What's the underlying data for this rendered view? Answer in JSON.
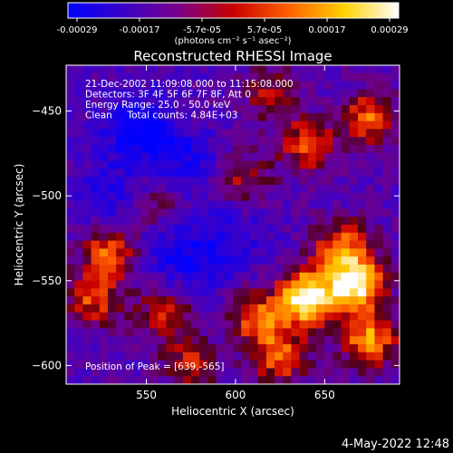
{
  "colorbar": {
    "ticks": [
      "-0.00029",
      "-0.00017",
      "-5.7e-05",
      "5.7e-05",
      "0.00017",
      "0.00029"
    ],
    "units": "(photons cm⁻² s⁻¹ asec⁻²)",
    "colors": [
      "#0000ff",
      "#3a00c8",
      "#7a008a",
      "#c80000",
      "#ff6000",
      "#ffd000",
      "#ffffff"
    ]
  },
  "footer": {
    "date": "4-May-2022 12:48"
  },
  "chart_data": {
    "type": "heatmap",
    "title": "Reconstructed RHESSI Image",
    "xlabel": "Heliocentric X (arcsec)",
    "ylabel": "Heliocentric Y (arcsec)",
    "xlim": [
      505,
      692
    ],
    "ylim": [
      -611,
      -423
    ],
    "x_ticks": [
      550,
      600,
      650
    ],
    "y_ticks": [
      -450,
      -500,
      -550,
      -600
    ],
    "value_range": [
      -0.00029,
      0.00029
    ],
    "annotations": [
      "21-Dec-2002 11:09:08.000 to 11:15:08.000",
      "Detectors: 3F 4F 5F 6F 7F 8F, Att 0",
      "Energy Range: 25.0 - 50.0 keV",
      "Clean     Total counts: 4.84E+03"
    ],
    "peak_label": "Position of Peak = [639,-565]",
    "peak": [
      639,
      -565
    ],
    "bright_regions": [
      {
        "x": 640,
        "y": -560,
        "strength": 1.0
      },
      {
        "x": 668,
        "y": -553,
        "strength": 0.9
      },
      {
        "x": 612,
        "y": -572,
        "strength": 0.55
      },
      {
        "x": 660,
        "y": -530,
        "strength": 0.6
      },
      {
        "x": 675,
        "y": -585,
        "strength": 0.65
      },
      {
        "x": 625,
        "y": -595,
        "strength": 0.55
      },
      {
        "x": 530,
        "y": -533,
        "strength": 0.55
      },
      {
        "x": 520,
        "y": -560,
        "strength": 0.5
      },
      {
        "x": 560,
        "y": -570,
        "strength": 0.45
      },
      {
        "x": 575,
        "y": -600,
        "strength": 0.4
      },
      {
        "x": 675,
        "y": -455,
        "strength": 0.55
      },
      {
        "x": 640,
        "y": -470,
        "strength": 0.5
      },
      {
        "x": 620,
        "y": -440,
        "strength": 0.35
      },
      {
        "x": 605,
        "y": -490,
        "strength": 0.35
      },
      {
        "x": 555,
        "y": -505,
        "strength": 0.3
      }
    ],
    "dark_regions": [
      {
        "x": 545,
        "y": -460,
        "strength": 0.8
      },
      {
        "x": 570,
        "y": -480,
        "strength": 0.6
      },
      {
        "x": 530,
        "y": -500,
        "strength": 0.5
      },
      {
        "x": 580,
        "y": -540,
        "strength": 0.5
      },
      {
        "x": 600,
        "y": -520,
        "strength": 0.4
      },
      {
        "x": 560,
        "y": -530,
        "strength": 0.4
      }
    ]
  }
}
